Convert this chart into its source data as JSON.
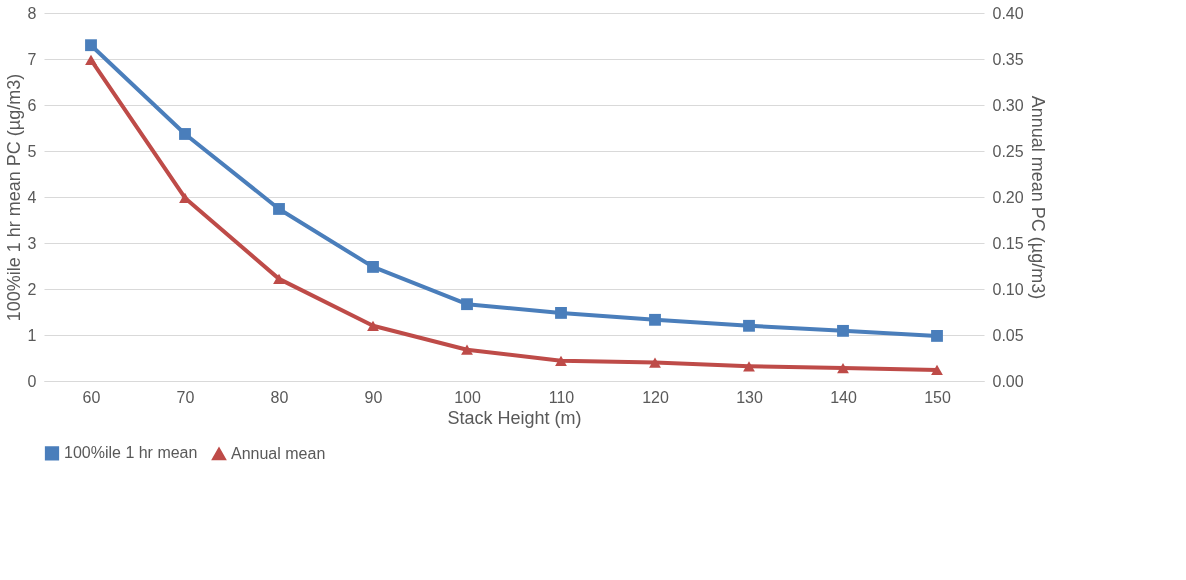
{
  "chart_data": {
    "type": "line",
    "xlabel": "Stack Height (m)",
    "ylabel": "100%ile 1 hr mean PC (µg/m3)",
    "y2label": "Annual mean PC (µg/m3)",
    "categories": [
      "60",
      "70",
      "80",
      "90",
      "100",
      "110",
      "120",
      "130",
      "140",
      "150"
    ],
    "series": [
      {
        "name": "100%ile 1 hr mean",
        "color": "#4a7ebb",
        "marker": "square",
        "values": [
          7.3,
          5.37,
          3.74,
          2.48,
          1.67,
          1.48,
          1.33,
          1.2,
          1.09,
          0.98
        ]
      },
      {
        "name": "Annual mean",
        "color": "#be4b48",
        "marker": "triangle",
        "axis": "y2",
        "values": [
          0.349,
          0.199,
          0.111,
          0.06,
          0.034,
          0.022,
          0.02,
          0.016,
          0.014,
          0.012
        ]
      }
    ],
    "ylim": [
      0,
      8
    ],
    "yticks": [
      0,
      1,
      2,
      3,
      4,
      5,
      6,
      7,
      8
    ],
    "y2lim": [
      0,
      0.4
    ],
    "y2ticks": [
      {
        "value": 0,
        "label": "0.00"
      },
      {
        "value": 0.05,
        "label": "0.05"
      },
      {
        "value": 0.1,
        "label": "0.10"
      },
      {
        "value": 0.15,
        "label": "0.15"
      },
      {
        "value": 0.2,
        "label": "0.20"
      },
      {
        "value": 0.25,
        "label": "0.25"
      },
      {
        "value": 0.3,
        "label": "0.30"
      },
      {
        "value": 0.35,
        "label": "0.35"
      },
      {
        "value": 0.4,
        "label": "0.40"
      }
    ],
    "grid": "y",
    "legend": "bottom",
    "line_style": "solid"
  }
}
